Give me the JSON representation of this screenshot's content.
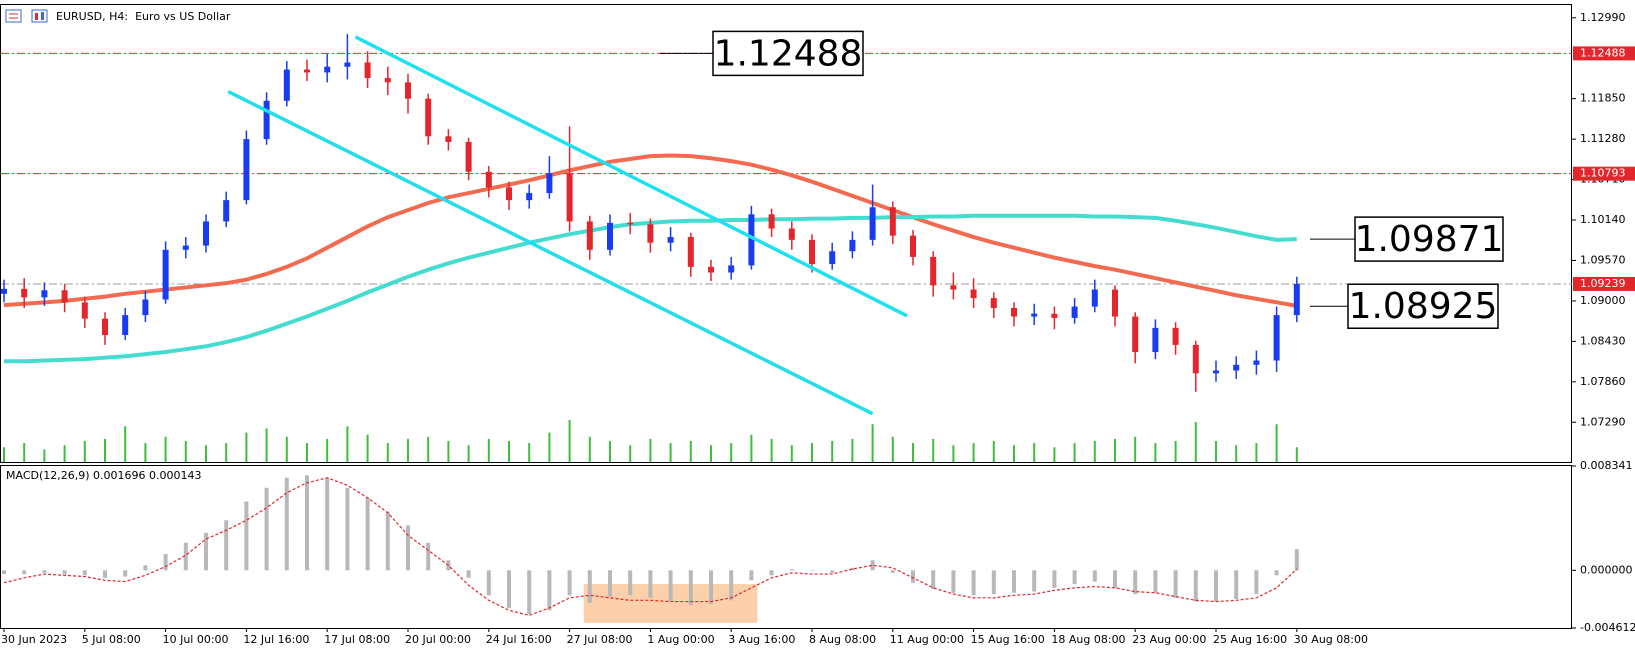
{
  "chart_data": {
    "type": "candlestick",
    "title": "EURUSD, H4:  Euro vs US Dollar",
    "up_color": "#1a3cf0",
    "down_color": "#e3262b",
    "ylim": [
      1.0673,
      1.1317
    ],
    "yticks": [
      {
        "value": 1.1299,
        "label": "1.12990"
      },
      {
        "value": 1.1185,
        "label": "1.11850"
      },
      {
        "value": 1.1128,
        "label": "1.11280"
      },
      {
        "value": 1.1071,
        "label": "1.10710"
      },
      {
        "value": 1.1014,
        "label": "1.10140"
      },
      {
        "value": 1.0957,
        "label": "1.09570"
      },
      {
        "value": 1.09,
        "label": "1.09000"
      },
      {
        "value": 1.0843,
        "label": "1.08430"
      },
      {
        "value": 1.0786,
        "label": "1.07860"
      },
      {
        "value": 1.0729,
        "label": "1.07290"
      }
    ],
    "categories": [
      "30 Jun 2023",
      null,
      null,
      null,
      "5 Jul 08:00",
      null,
      null,
      null,
      "10 Jul 00:00",
      null,
      null,
      null,
      "12 Jul 16:00",
      null,
      null,
      null,
      "17 Jul 08:00",
      null,
      null,
      null,
      "20 Jul 00:00",
      null,
      null,
      null,
      "24 Jul 16:00",
      null,
      null,
      null,
      "27 Jul 08:00",
      null,
      null,
      null,
      "1 Aug 00:00",
      null,
      null,
      null,
      "3 Aug 16:00",
      null,
      null,
      null,
      "8 Aug 08:00",
      null,
      null,
      null,
      "11 Aug 00:00",
      null,
      null,
      null,
      "15 Aug 16:00",
      null,
      null,
      null,
      "18 Aug 08:00",
      null,
      null,
      null,
      "23 Aug 00:00",
      null,
      null,
      null,
      "25 Aug 16:00",
      null,
      null,
      null,
      "30 Aug 08:00"
    ],
    "open": [
      1.091,
      1.0917,
      1.0905,
      1.0915,
      1.0898,
      1.0875,
      1.0852,
      1.088,
      1.0902,
      1.0972,
      1.0978,
      1.1012,
      1.1042,
      1.1128,
      1.1182,
      1.1226,
      1.1222,
      1.123,
      1.1236,
      1.1214,
      1.1208,
      1.1185,
      1.1132,
      1.1124,
      1.1082,
      1.106,
      1.1042,
      1.1052,
      1.108,
      1.1012,
      1.0972,
      1.101,
      1.1008,
      1.0982,
      1.099,
      1.0948,
      1.094,
      1.095,
      1.1022,
      1.1002,
      1.0986,
      1.0952,
      1.097,
      1.0986,
      1.1032,
      1.0992,
      1.0962,
      1.0922,
      1.0916,
      1.0904,
      1.089,
      1.0878,
      1.0882,
      1.0876,
      1.0892,
      1.0916,
      1.0878,
      1.0828,
      1.0862,
      1.0838,
      1.0798,
      1.0802,
      1.081,
      1.0816,
      1.088
    ],
    "high": [
      1.093,
      1.0932,
      1.0926,
      1.0924,
      1.0906,
      1.0884,
      1.089,
      1.0914,
      1.0984,
      1.099,
      1.1022,
      1.1054,
      1.114,
      1.1194,
      1.1238,
      1.124,
      1.1248,
      1.1276,
      1.1252,
      1.123,
      1.122,
      1.1192,
      1.1142,
      1.113,
      1.109,
      1.1068,
      1.1064,
      1.1104,
      1.1146,
      1.102,
      1.1022,
      1.1024,
      1.1016,
      1.1004,
      1.0996,
      1.0958,
      1.0962,
      1.1034,
      1.103,
      1.1012,
      1.0994,
      1.0982,
      1.0998,
      1.1064,
      1.104,
      1.1,
      1.097,
      1.094,
      1.0932,
      1.0912,
      1.0898,
      1.0896,
      1.0892,
      1.0904,
      1.093,
      1.0922,
      1.0884,
      1.0874,
      1.087,
      1.0844,
      1.0816,
      1.0822,
      1.083,
      1.0892,
      1.0934
    ],
    "low": [
      1.0898,
      1.089,
      1.0893,
      1.0884,
      1.0862,
      1.0838,
      1.0845,
      1.087,
      1.0896,
      1.096,
      1.0968,
      1.1004,
      1.1036,
      1.112,
      1.1174,
      1.121,
      1.1208,
      1.1212,
      1.12,
      1.119,
      1.1164,
      1.112,
      1.1112,
      1.107,
      1.1046,
      1.1028,
      1.103,
      1.1044,
      1.0998,
      1.0958,
      1.0964,
      1.0994,
      1.0968,
      1.097,
      1.0934,
      1.0928,
      1.093,
      1.0944,
      1.099,
      1.0972,
      1.094,
      1.0944,
      1.096,
      1.0978,
      1.098,
      1.095,
      1.0906,
      1.0902,
      1.089,
      1.0876,
      1.0864,
      1.0866,
      1.086,
      1.0868,
      1.0884,
      1.0864,
      1.0812,
      1.0818,
      1.0824,
      1.0772,
      1.0786,
      1.079,
      1.0796,
      1.08,
      1.087
    ],
    "close": [
      1.0917,
      1.0905,
      1.0915,
      1.0898,
      1.0875,
      1.0852,
      1.088,
      1.0902,
      1.0972,
      1.0978,
      1.1012,
      1.1042,
      1.1128,
      1.1182,
      1.1226,
      1.1222,
      1.123,
      1.1236,
      1.1214,
      1.1208,
      1.1185,
      1.1132,
      1.1124,
      1.1082,
      1.106,
      1.1042,
      1.1052,
      1.108,
      1.1012,
      1.0972,
      1.101,
      1.1008,
      1.0982,
      1.099,
      1.0948,
      1.094,
      1.095,
      1.1022,
      1.1002,
      1.0986,
      1.0952,
      1.097,
      1.0986,
      1.1032,
      1.0992,
      1.0962,
      1.0922,
      1.0916,
      1.0904,
      1.089,
      1.0878,
      1.0882,
      1.0876,
      1.0892,
      1.0916,
      1.0878,
      1.0828,
      1.0862,
      1.0838,
      1.0798,
      1.0802,
      1.081,
      1.0816,
      1.088,
      1.0924
    ],
    "volume": [
      14,
      18,
      12,
      16,
      20,
      22,
      34,
      18,
      24,
      20,
      16,
      18,
      28,
      32,
      24,
      18,
      22,
      34,
      26,
      18,
      22,
      24,
      20,
      16,
      22,
      20,
      18,
      28,
      40,
      24,
      20,
      16,
      22,
      18,
      20,
      16,
      18,
      26,
      22,
      16,
      18,
      20,
      22,
      36,
      24,
      18,
      22,
      16,
      18,
      20,
      16,
      18,
      14,
      18,
      20,
      22,
      24,
      18,
      20,
      38,
      20,
      16,
      18,
      36,
      14
    ],
    "ma_lines": [
      {
        "color": "#f26a50",
        "values": [
          1.0894,
          1.0896,
          1.0898,
          1.09,
          1.0903,
          1.0906,
          1.091,
          1.0913,
          1.0916,
          1.0919,
          1.0922,
          1.0925,
          1.093,
          1.0938,
          1.0948,
          1.096,
          1.0975,
          1.099,
          1.1005,
          1.1018,
          1.1028,
          1.1038,
          1.1046,
          1.1052,
          1.1058,
          1.1064,
          1.107,
          1.1077,
          1.1084,
          1.109,
          1.1096,
          1.11,
          1.1104,
          1.1105,
          1.1104,
          1.1101,
          1.1097,
          1.1092,
          1.1085,
          1.1077,
          1.1068,
          1.1058,
          1.1048,
          1.1038,
          1.1028,
          1.1018,
          1.1008,
          1.0999,
          1.099,
          1.0982,
          1.0975,
          1.0968,
          1.0961,
          1.0955,
          1.0949,
          1.0944,
          1.0938,
          1.0932,
          1.0926,
          1.092,
          1.0914,
          1.0908,
          1.0903,
          1.0898,
          1.0893
        ]
      },
      {
        "color": "#45dcd0",
        "values": [
          1.0815,
          1.0815,
          1.0816,
          1.0817,
          1.0818,
          1.082,
          1.0822,
          1.0825,
          1.0828,
          1.0832,
          1.0836,
          1.0842,
          1.0849,
          1.0858,
          1.0868,
          1.0878,
          1.0889,
          1.09,
          1.0912,
          1.0923,
          1.0934,
          1.0944,
          1.0953,
          1.0961,
          1.0968,
          1.0975,
          1.0982,
          1.0988,
          1.0994,
          1.0999,
          1.1004,
          1.1008,
          1.101,
          1.1012,
          1.1013,
          1.1013,
          1.1014,
          1.1014,
          1.1015,
          1.1015,
          1.1016,
          1.1016,
          1.1017,
          1.1017,
          1.1018,
          1.1018,
          1.1019,
          1.1019,
          1.102,
          1.102,
          1.102,
          1.102,
          1.102,
          1.102,
          1.1019,
          1.1019,
          1.1018,
          1.1017,
          1.1013,
          1.1008,
          1.1003,
          1.0997,
          1.0991,
          1.0986,
          1.0987
        ]
      }
    ],
    "trendlines": [
      {
        "color": "#1ee0f0",
        "x": [
          17.4,
          44.7
        ],
        "y": [
          1.1272,
          1.0879
        ]
      },
      {
        "color": "#1ee0f0",
        "x": [
          11.1,
          43.0
        ],
        "y": [
          1.1195,
          1.0741
        ]
      }
    ],
    "levels": [
      {
        "value": 1.12488,
        "color": "#e3262b"
      },
      {
        "value": 1.10793,
        "color": "#e3262b"
      },
      {
        "value": 1.09239,
        "color": "#9a9a9a"
      }
    ],
    "callouts": [
      1.12488,
      1.09871,
      1.08925
    ],
    "macd": {
      "label": "MACD(12,26,9) 0.001696 0.000143",
      "ylim": [
        -0.004612,
        0.008341
      ],
      "yticks": [
        0.008341,
        {
          "value": 0,
          "label": "0.000000"
        },
        -0.004612
      ],
      "histogram_color": "#b8b8b8",
      "signal_color": "#e3262b",
      "histogram": [
        -0.0003,
        -0.0003,
        -0.0002,
        -0.0003,
        -0.0004,
        -0.0006,
        -0.0005,
        0.0004,
        0.0013,
        0.0022,
        0.003,
        0.004,
        0.0055,
        0.0066,
        0.0074,
        0.0076,
        0.0074,
        0.0066,
        0.0058,
        0.0047,
        0.0036,
        0.0022,
        0.0008,
        -0.0006,
        -0.002,
        -0.003,
        -0.0035,
        -0.0032,
        -0.002,
        -0.0026,
        -0.0021,
        -0.002,
        -0.0022,
        -0.0025,
        -0.0028,
        -0.0027,
        -0.0024,
        -0.0008,
        -0.0004,
        0.0001,
        0.0,
        -0.0002,
        0.0002,
        0.0008,
        -0.0002,
        -0.001,
        -0.0015,
        -0.0018,
        -0.002,
        -0.0019,
        -0.0018,
        -0.0017,
        -0.0014,
        -0.0011,
        -0.0009,
        -0.0014,
        -0.0019,
        -0.0018,
        -0.0022,
        -0.0025,
        -0.0025,
        -0.0023,
        -0.0019,
        -0.0004,
        0.0017
      ],
      "signal": [
        -0.001,
        -0.0006,
        -0.0003,
        -0.0004,
        -0.0005,
        -0.0008,
        -0.0009,
        -0.0004,
        0.0003,
        0.0012,
        0.0025,
        0.0032,
        0.004,
        0.005,
        0.0062,
        0.007,
        0.0074,
        0.0068,
        0.0058,
        0.0046,
        0.0028,
        0.0016,
        0.0004,
        -0.0012,
        -0.0024,
        -0.0032,
        -0.0036,
        -0.003,
        -0.0022,
        -0.002,
        -0.0022,
        -0.0024,
        -0.0024,
        -0.0025,
        -0.0025,
        -0.0025,
        -0.0022,
        -0.0014,
        -0.0006,
        -0.0002,
        -0.0003,
        -0.0003,
        0.0001,
        0.0004,
        0.0002,
        -0.0006,
        -0.0014,
        -0.0019,
        -0.0022,
        -0.0022,
        -0.002,
        -0.0019,
        -0.0016,
        -0.0014,
        -0.0013,
        -0.0014,
        -0.0017,
        -0.0018,
        -0.0021,
        -0.0024,
        -0.0025,
        -0.0024,
        -0.0022,
        -0.0014,
        0.0001
      ],
      "highlight": {
        "color": "#fcd0aa",
        "x": [
          28.7,
          37.3
        ],
        "y": [
          -0.0011,
          -0.0042
        ]
      }
    }
  }
}
